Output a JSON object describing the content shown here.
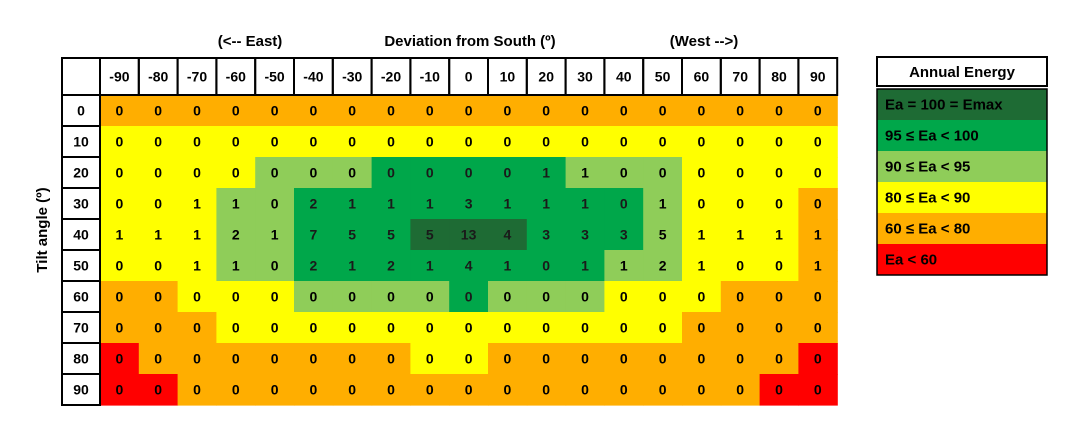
{
  "chart_data": {
    "type": "heatmap",
    "top_label_left": "(<-- East)",
    "xlabel": "Deviation from South (º)",
    "top_label_right": "(West -->)",
    "ylabel": "Tilt angle (º)",
    "x": [
      -90,
      -80,
      -70,
      -60,
      -50,
      -40,
      -30,
      -20,
      -10,
      0,
      10,
      20,
      30,
      40,
      50,
      60,
      70,
      80,
      90
    ],
    "y": [
      0,
      10,
      20,
      30,
      40,
      50,
      60,
      70,
      80,
      90
    ],
    "values": [
      [
        0,
        0,
        0,
        0,
        0,
        0,
        0,
        0,
        0,
        0,
        0,
        0,
        0,
        0,
        0,
        0,
        0,
        0,
        0
      ],
      [
        0,
        0,
        0,
        0,
        0,
        0,
        0,
        0,
        0,
        0,
        0,
        0,
        0,
        0,
        0,
        0,
        0,
        0,
        0
      ],
      [
        0,
        0,
        0,
        0,
        0,
        0,
        0,
        0,
        0,
        0,
        0,
        1,
        1,
        0,
        0,
        0,
        0,
        0,
        0
      ],
      [
        0,
        0,
        1,
        1,
        0,
        2,
        1,
        1,
        1,
        3,
        1,
        1,
        1,
        0,
        1,
        0,
        0,
        0,
        0
      ],
      [
        1,
        1,
        1,
        2,
        1,
        7,
        5,
        5,
        5,
        13,
        4,
        3,
        3,
        3,
        5,
        1,
        1,
        1,
        1
      ],
      [
        0,
        0,
        1,
        1,
        0,
        2,
        1,
        2,
        1,
        4,
        1,
        0,
        1,
        1,
        2,
        1,
        0,
        0,
        1
      ],
      [
        0,
        0,
        0,
        0,
        0,
        0,
        0,
        0,
        0,
        0,
        0,
        0,
        0,
        0,
        0,
        0,
        0,
        0,
        0
      ],
      [
        0,
        0,
        0,
        0,
        0,
        0,
        0,
        0,
        0,
        0,
        0,
        0,
        0,
        0,
        0,
        0,
        0,
        0,
        0
      ],
      [
        0,
        0,
        0,
        0,
        0,
        0,
        0,
        0,
        0,
        0,
        0,
        0,
        0,
        0,
        0,
        0,
        0,
        0,
        0
      ],
      [
        0,
        0,
        0,
        0,
        0,
        0,
        0,
        0,
        0,
        0,
        0,
        0,
        0,
        0,
        0,
        0,
        0,
        0,
        0
      ]
    ],
    "classes": [
      [
        4,
        4,
        4,
        4,
        4,
        4,
        4,
        4,
        4,
        4,
        4,
        4,
        4,
        4,
        4,
        4,
        4,
        4,
        4
      ],
      [
        3,
        3,
        3,
        3,
        3,
        3,
        3,
        3,
        3,
        3,
        3,
        3,
        3,
        3,
        3,
        3,
        3,
        3,
        3
      ],
      [
        3,
        3,
        3,
        3,
        2,
        2,
        2,
        1,
        1,
        1,
        1,
        1,
        2,
        2,
        2,
        3,
        3,
        3,
        3
      ],
      [
        3,
        3,
        3,
        2,
        2,
        1,
        1,
        1,
        1,
        1,
        1,
        1,
        1,
        1,
        2,
        3,
        3,
        3,
        4
      ],
      [
        3,
        3,
        3,
        2,
        2,
        1,
        1,
        1,
        0,
        0,
        0,
        1,
        1,
        1,
        2,
        3,
        3,
        3,
        4
      ],
      [
        3,
        3,
        3,
        2,
        2,
        1,
        1,
        1,
        1,
        1,
        1,
        1,
        1,
        2,
        2,
        3,
        3,
        3,
        4
      ],
      [
        4,
        4,
        3,
        3,
        3,
        2,
        2,
        2,
        2,
        1,
        2,
        2,
        2,
        3,
        3,
        3,
        4,
        4,
        4
      ],
      [
        4,
        4,
        4,
        3,
        3,
        3,
        3,
        3,
        3,
        3,
        3,
        3,
        3,
        3,
        3,
        4,
        4,
        4,
        4
      ],
      [
        5,
        4,
        4,
        4,
        4,
        4,
        4,
        4,
        3,
        3,
        4,
        4,
        4,
        4,
        4,
        4,
        4,
        4,
        5
      ],
      [
        5,
        5,
        4,
        4,
        4,
        4,
        4,
        4,
        4,
        4,
        4,
        4,
        4,
        4,
        4,
        4,
        4,
        5,
        5
      ]
    ],
    "legend": {
      "title": "Annual Energy",
      "entries": [
        {
          "label": "Ea = 100 = Emax",
          "color": "#1e6b34"
        },
        {
          "label": "95 ≤ Ea < 100",
          "color": "#00a74a"
        },
        {
          "label": "90 ≤ Ea < 95",
          "color": "#8fcd59"
        },
        {
          "label": "80 ≤ Ea < 90",
          "color": "#ffff00"
        },
        {
          "label": "60 ≤ Ea < 80",
          "color": "#ffae00"
        },
        {
          "label": "Ea < 60",
          "color": "#ff0000"
        }
      ],
      "placement": "right"
    },
    "grid": false
  }
}
